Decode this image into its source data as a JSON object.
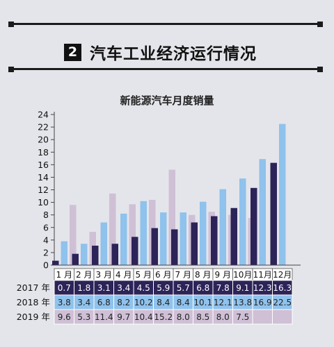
{
  "section": {
    "number": "2",
    "title": "汽车工业经济运行情况"
  },
  "colors": {
    "background": "#e4e5ea",
    "series_2017": "#2c2358",
    "series_2018": "#8fc2ec",
    "series_2019": "#cfc0d6",
    "rule": "#1b1b1b"
  },
  "chart_data": {
    "type": "bar",
    "title": "新能源汽车月度销量",
    "xlabel": "",
    "ylabel": "",
    "ylim": [
      0,
      24
    ],
    "yticks": [
      0,
      2,
      4,
      6,
      8,
      10,
      12,
      14,
      16,
      18,
      20,
      22,
      24
    ],
    "categories": [
      "1 月",
      "2 月",
      "3 月",
      "4 月",
      "5 月",
      "6 月",
      "7 月",
      "8 月",
      "9 月",
      "10月",
      "11月",
      "12月"
    ],
    "series": [
      {
        "name": "2017 年",
        "values": [
          0.7,
          1.8,
          3.1,
          3.4,
          4.5,
          5.9,
          5.7,
          6.8,
          7.8,
          9.1,
          12.3,
          16.3
        ]
      },
      {
        "name": "2018 年",
        "values": [
          3.8,
          3.4,
          6.8,
          8.2,
          10.2,
          8.4,
          8.4,
          10.1,
          12.1,
          13.8,
          16.9,
          22.5
        ]
      },
      {
        "name": "2019 年",
        "values": [
          9.6,
          5.3,
          11.4,
          9.7,
          10.4,
          15.2,
          8.0,
          8.5,
          8.0,
          7.5,
          null,
          null
        ]
      }
    ],
    "table_cells": [
      [
        "0.7",
        "1.8",
        "3.1",
        "3.4",
        "4.5",
        "5.9",
        "5.7",
        "6.8",
        "7.8",
        "9.1",
        "12.3",
        "16.3"
      ],
      [
        "3.8",
        "3.4",
        "6.8",
        "8.2",
        "10.2",
        "8.4",
        "8.4",
        "10.1",
        "12.1",
        "13.8",
        "16.9",
        "22.5"
      ],
      [
        "9.6",
        "5.3",
        "11.4",
        "9.7",
        "10.4",
        "15.2",
        "8.0",
        "8.5",
        "8.0",
        "7.5",
        "",
        ""
      ]
    ]
  }
}
